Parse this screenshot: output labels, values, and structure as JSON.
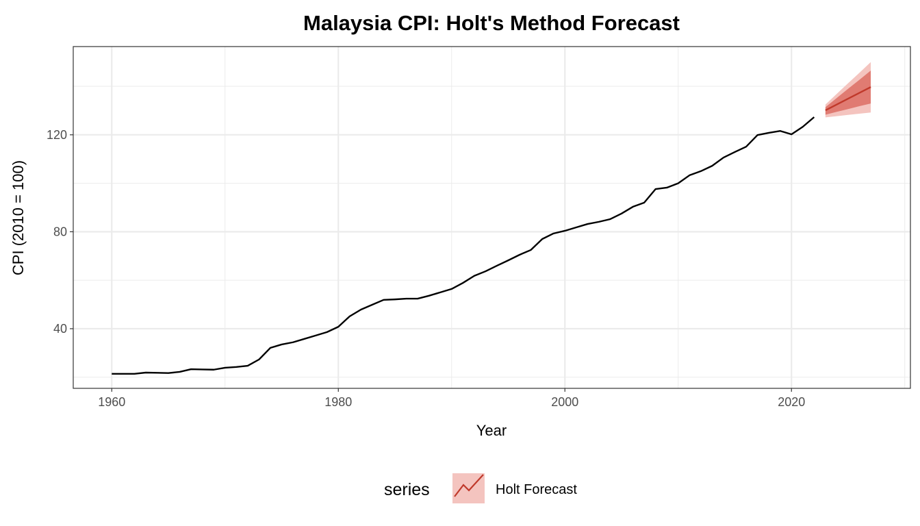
{
  "chart_data": {
    "type": "line",
    "title": "Malaysia CPI: Holt's Method Forecast",
    "xlabel": "Year",
    "ylabel": "CPI (2010 = 100)",
    "xlim": [
      1956.6,
      2030.5
    ],
    "ylim": [
      15.4,
      156.4
    ],
    "x_ticks": [
      1960,
      1980,
      2000,
      2020
    ],
    "y_ticks": [
      40,
      80,
      120
    ],
    "y_minor": [
      20,
      60,
      100,
      140
    ],
    "x_minor": [
      1970,
      1990,
      2010,
      2030
    ],
    "grid": true,
    "legend": {
      "title": "series",
      "position": "bottom",
      "entries": [
        "Holt Forecast"
      ]
    },
    "colors": {
      "actual": "#000000",
      "forecast": "#c0392b",
      "band80": "#e07b72",
      "band95": "#f4c4bf",
      "grid": "#ebebeb"
    },
    "actual": {
      "x": [
        1960,
        1961,
        1962,
        1963,
        1964,
        1965,
        1966,
        1967,
        1968,
        1969,
        1970,
        1971,
        1972,
        1973,
        1974,
        1975,
        1976,
        1977,
        1978,
        1979,
        1980,
        1981,
        1982,
        1983,
        1984,
        1985,
        1986,
        1987,
        1988,
        1989,
        1990,
        1991,
        1992,
        1993,
        1994,
        1995,
        1996,
        1997,
        1998,
        1999,
        2000,
        2001,
        2002,
        2003,
        2004,
        2005,
        2006,
        2007,
        2008,
        2009,
        2010,
        2011,
        2012,
        2013,
        2014,
        2015,
        2016,
        2017,
        2018,
        2019,
        2020,
        2021,
        2022
      ],
      "y": [
        21.4,
        21.4,
        21.4,
        21.9,
        21.8,
        21.7,
        22.2,
        23.3,
        23.2,
        23.1,
        23.9,
        24.2,
        24.7,
        27.3,
        32.1,
        33.5,
        34.4,
        35.8,
        37.2,
        38.6,
        40.8,
        45.1,
        47.9,
        49.9,
        51.9,
        52.1,
        52.4,
        52.4,
        53.6,
        55.0,
        56.4,
        58.9,
        61.8,
        63.7,
        66.0,
        68.2,
        70.5,
        72.5,
        77.0,
        79.3,
        80.4,
        81.8,
        83.2,
        84.1,
        85.2,
        87.5,
        90.3,
        92.0,
        97.6,
        98.2,
        100.0,
        103.3,
        105.0,
        107.2,
        110.6,
        112.9,
        115.1,
        119.9,
        120.8,
        121.6,
        120.2,
        123.3,
        127.3
      ]
    },
    "forecast": {
      "name": "Holt Forecast",
      "x": [
        2023,
        2024,
        2025,
        2026,
        2027
      ],
      "mean": [
        130.1,
        132.5,
        134.9,
        137.3,
        139.7
      ],
      "lo80": [
        128.3,
        129.5,
        130.6,
        131.8,
        132.9
      ],
      "hi80": [
        131.4,
        135.2,
        139.0,
        142.7,
        146.5
      ],
      "lo95": [
        127.2,
        127.7,
        128.2,
        128.7,
        129.2
      ],
      "hi95": [
        132.5,
        136.9,
        141.3,
        145.6,
        150.0
      ]
    }
  }
}
